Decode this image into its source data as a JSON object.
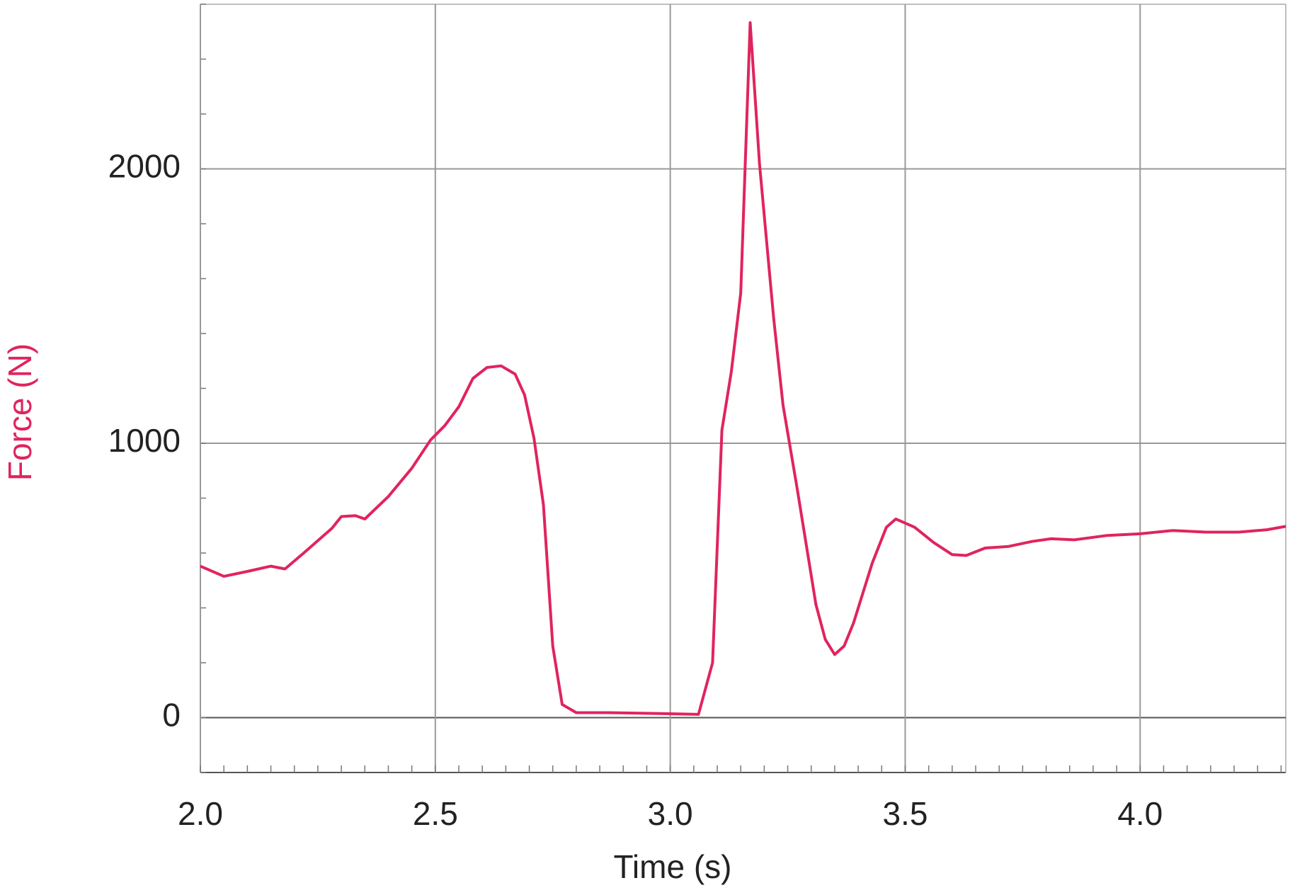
{
  "chart_data": {
    "type": "line",
    "x_label": "Time (s)",
    "y_label": "Force (N)",
    "x": [
      2.0,
      2.05,
      2.1,
      2.15,
      2.18,
      2.22,
      2.28,
      2.3,
      2.33,
      2.35,
      2.4,
      2.45,
      2.49,
      2.52,
      2.55,
      2.58,
      2.61,
      2.64,
      2.67,
      2.69,
      2.71,
      2.73,
      2.75,
      2.77,
      2.8,
      2.87,
      2.98,
      3.06,
      3.09,
      3.11,
      3.13,
      3.15,
      3.17,
      3.19,
      3.22,
      3.24,
      3.27,
      3.31,
      3.33,
      3.35,
      3.37,
      3.39,
      3.43,
      3.46,
      3.48,
      3.52,
      3.56,
      3.6,
      3.63,
      3.67,
      3.72,
      3.77,
      3.81,
      3.86,
      3.93,
      4.0,
      4.07,
      4.14,
      4.21,
      4.27,
      4.31
    ],
    "series": [
      {
        "name": "Force",
        "color": "#e0245e",
        "values": [
          552,
          515,
          533,
          552,
          542,
          600,
          690,
          733,
          736,
          724,
          806,
          909,
          1012,
          1064,
          1133,
          1236,
          1276,
          1282,
          1252,
          1176,
          1018,
          776,
          261,
          48,
          18,
          18,
          15,
          12,
          200,
          1048,
          1261,
          1548,
          2533,
          2018,
          1458,
          1139,
          836,
          412,
          285,
          230,
          261,
          345,
          564,
          694,
          724,
          694,
          639,
          594,
          591,
          618,
          624,
          642,
          652,
          648,
          664,
          670,
          682,
          676,
          676,
          685,
          697
        ]
      }
    ],
    "xlim": [
      2.0,
      4.31
    ],
    "ylim": [
      -200,
      2600
    ],
    "xticks": [
      {
        "value": 2,
        "label": "2.0"
      },
      2.5,
      {
        "value": 3,
        "label": "3.0"
      },
      3.5,
      {
        "value": 4,
        "label": "4.0"
      }
    ],
    "yticks": [
      0,
      1000,
      2000
    ],
    "grid": true
  }
}
